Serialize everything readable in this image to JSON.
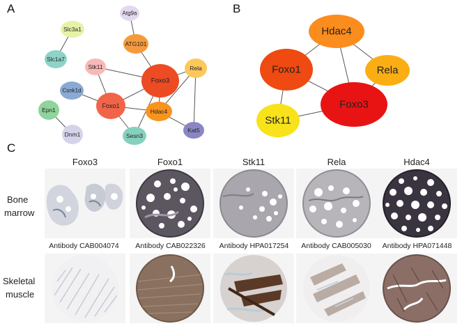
{
  "panels": {
    "a": "A",
    "b": "B",
    "c": "C"
  },
  "network_a": {
    "nodes": [
      {
        "id": "Slc3a1",
        "label": "Slc3a1",
        "color": "#e6f2a6"
      },
      {
        "id": "Atg9a",
        "label": "Atg9a",
        "color": "#e3d9ee"
      },
      {
        "id": "ATG101",
        "label": "ATG101",
        "color": "#f59a3c"
      },
      {
        "id": "Slc1a7",
        "label": "Slc1a7",
        "color": "#8ed3c7"
      },
      {
        "id": "Stk11",
        "label": "Stk11",
        "color": "#f8b9b7"
      },
      {
        "id": "Foxo3",
        "label": "Foxo3",
        "color": "#ec4b23"
      },
      {
        "id": "Rela",
        "label": "Rela",
        "color": "#fdc85a"
      },
      {
        "id": "Csnk1d",
        "label": "Csnk1d",
        "color": "#8aa9d4"
      },
      {
        "id": "Foxo1",
        "label": "Foxo1",
        "color": "#f2644a"
      },
      {
        "id": "Hdac4",
        "label": "Hdac4",
        "color": "#f7931e"
      },
      {
        "id": "Epn1",
        "label": "Epn1",
        "color": "#8fd49a"
      },
      {
        "id": "Sesn3",
        "label": "Sesn3",
        "color": "#86d1bd"
      },
      {
        "id": "Kat5",
        "label": "Kat5",
        "color": "#8a86c4"
      },
      {
        "id": "Dnm1",
        "label": "Dnm1",
        "color": "#d5d3ea"
      }
    ],
    "edges": [
      [
        "Slc3a1",
        "Slc1a7"
      ],
      [
        "Atg9a",
        "ATG101"
      ],
      [
        "ATG101",
        "Foxo3"
      ],
      [
        "Stk11",
        "Foxo3"
      ],
      [
        "Stk11",
        "Foxo1"
      ],
      [
        "Foxo3",
        "Foxo1"
      ],
      [
        "Foxo3",
        "Hdac4"
      ],
      [
        "Foxo3",
        "Sesn3"
      ],
      [
        "Foxo3",
        "Rela"
      ],
      [
        "Csnk1d",
        "Foxo1"
      ],
      [
        "Foxo1",
        "Hdac4"
      ],
      [
        "Foxo1",
        "Sesn3"
      ],
      [
        "Hdac4",
        "Rela"
      ],
      [
        "Rela",
        "Kat5"
      ],
      [
        "Hdac4",
        "Kat5"
      ],
      [
        "Epn1",
        "Dnm1"
      ]
    ]
  },
  "network_b": {
    "nodes": [
      {
        "id": "Hdac4",
        "label": "Hdac4",
        "color": "#fb8c1e"
      },
      {
        "id": "Foxo1",
        "label": "Foxo1",
        "color": "#ee4a12"
      },
      {
        "id": "Rela",
        "label": "Rela",
        "color": "#fbae14"
      },
      {
        "id": "Foxo3",
        "label": "Foxo3",
        "color": "#e81414"
      },
      {
        "id": "Stk11",
        "label": "Stk11",
        "color": "#f8e21a"
      }
    ],
    "edges": [
      [
        "Hdac4",
        "Foxo1"
      ],
      [
        "Hdac4",
        "Rela"
      ],
      [
        "Hdac4",
        "Foxo3"
      ],
      [
        "Foxo1",
        "Foxo3"
      ],
      [
        "Foxo1",
        "Stk11"
      ],
      [
        "Rela",
        "Foxo3"
      ],
      [
        "Stk11",
        "Foxo3"
      ]
    ]
  },
  "ihc": {
    "columns": [
      "Foxo3",
      "Foxo1",
      "Stk11",
      "Rela",
      "Hdac4"
    ],
    "rows": [
      {
        "label_line1": "Bone",
        "label_line2": "marrow"
      },
      {
        "label_line1": "Skeletal",
        "label_line2": "muscle"
      }
    ],
    "antibodies": [
      "Antibody CAB004074",
      "Antibody CAB022326",
      "Antibody HPA017254",
      "Antibody CAB005030",
      "Antibody HPA071448"
    ]
  }
}
